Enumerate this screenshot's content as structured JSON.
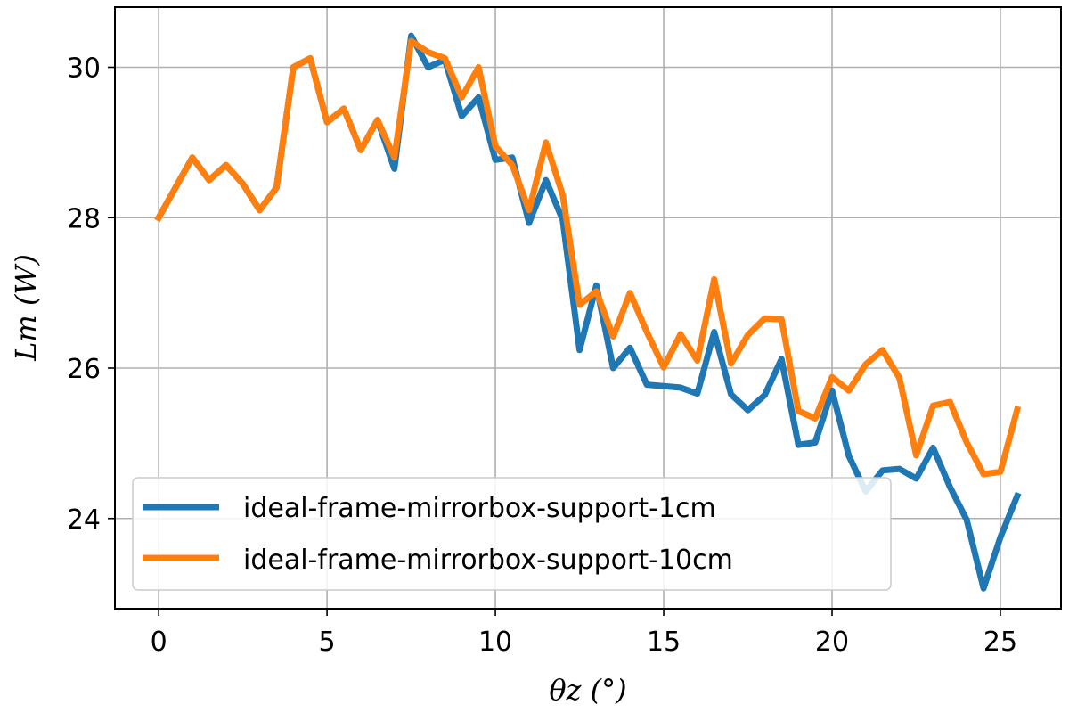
{
  "chart_data": {
    "type": "line",
    "xlabel": "θz   (°)",
    "ylabel": "Lm (W)",
    "xlim": [
      -1.3,
      26.8
    ],
    "ylim": [
      22.8,
      30.8
    ],
    "x_ticks": [
      0,
      5,
      10,
      15,
      20,
      25
    ],
    "y_ticks": [
      24,
      26,
      28,
      30
    ],
    "grid": true,
    "legend_position": "lower-left",
    "series": [
      {
        "name": "ideal-frame-mirrorbox-support-1cm",
        "color": "#1f77b4",
        "x": [
          0,
          0.5,
          1,
          1.5,
          2,
          2.5,
          3,
          3.5,
          4,
          4.5,
          5,
          5.5,
          6,
          6.5,
          7,
          7.5,
          8,
          8.5,
          9,
          9.5,
          10,
          10.5,
          11,
          11.5,
          12,
          12.5,
          13,
          13.5,
          14,
          14.5,
          15,
          15.5,
          16,
          16.5,
          17,
          17.5,
          18,
          18.5,
          19,
          19.5,
          20,
          20.5,
          21,
          21.5,
          22,
          22.5,
          23,
          23.5,
          24,
          24.5,
          25,
          25.5
        ],
        "y": [
          28.0,
          28.4,
          28.8,
          28.5,
          28.7,
          28.45,
          28.1,
          28.4,
          30.0,
          30.12,
          29.27,
          29.45,
          28.9,
          29.3,
          28.65,
          30.42,
          30.0,
          30.1,
          29.35,
          29.6,
          28.77,
          28.8,
          27.93,
          28.5,
          27.97,
          26.24,
          27.1,
          26.0,
          26.27,
          25.78,
          25.76,
          25.74,
          25.66,
          26.48,
          25.65,
          25.44,
          25.64,
          26.12,
          24.98,
          25.01,
          25.7,
          24.83,
          24.36,
          24.64,
          24.66,
          24.53,
          24.94,
          24.42,
          23.98,
          23.07,
          23.75,
          24.3
        ]
      },
      {
        "name": "ideal-frame-mirrorbox-support-10cm",
        "color": "#ff7f0e",
        "x": [
          0,
          0.5,
          1,
          1.5,
          2,
          2.5,
          3,
          3.5,
          4,
          4.5,
          5,
          5.5,
          6,
          6.5,
          7,
          7.5,
          8,
          8.5,
          9,
          9.5,
          10,
          10.5,
          11,
          11.5,
          12,
          12.5,
          13,
          13.5,
          14,
          14.5,
          15,
          15.5,
          16,
          16.5,
          17,
          17.5,
          18,
          18.5,
          19,
          19.5,
          20,
          20.5,
          21,
          21.5,
          22,
          22.5,
          23,
          23.5,
          24,
          24.5,
          25,
          25.5
        ],
        "y": [
          28.0,
          28.4,
          28.8,
          28.5,
          28.7,
          28.45,
          28.1,
          28.4,
          30.0,
          30.12,
          29.27,
          29.45,
          28.9,
          29.3,
          28.8,
          30.35,
          30.2,
          30.12,
          29.6,
          30.0,
          28.95,
          28.7,
          28.1,
          29.0,
          28.3,
          26.84,
          27.02,
          26.42,
          27.0,
          26.48,
          26.01,
          26.45,
          26.1,
          27.18,
          26.06,
          26.44,
          26.66,
          26.65,
          25.43,
          25.33,
          25.88,
          25.7,
          26.05,
          26.24,
          25.87,
          24.84,
          25.5,
          25.55,
          25.01,
          24.59,
          24.62,
          25.45
        ]
      }
    ]
  }
}
